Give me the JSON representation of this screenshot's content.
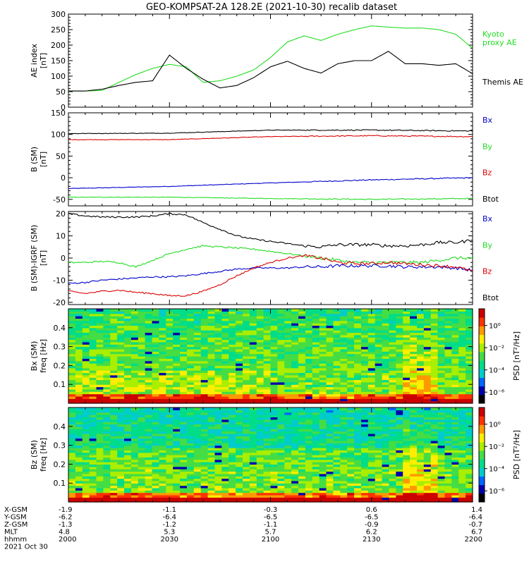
{
  "title": "GEO-KOMPSAT-2A 128.2E (2021-10-30) recalib dataset",
  "time_axis": {
    "ticks": [
      "2000",
      "2030",
      "2100",
      "2130",
      "2200"
    ],
    "date": "2021 Oct 30",
    "rows": [
      {
        "label": "X-GSM",
        "values": [
          "-1.9",
          "-1.1",
          "-0.3",
          "0.6",
          "1.4"
        ]
      },
      {
        "label": "Y-GSM",
        "values": [
          "-6.2",
          "-6.4",
          "-6.5",
          "-6.5",
          "-6.4"
        ]
      },
      {
        "label": "Z-GSM",
        "values": [
          "-1.3",
          "-1.2",
          "-1.1",
          "-0.9",
          "-0.7"
        ]
      },
      {
        "label": "MLT",
        "values": [
          "4.8",
          "5.3",
          "5.7",
          "6.2",
          "6.7"
        ]
      },
      {
        "label": "hhmm",
        "values": [
          "2000",
          "2030",
          "2100",
          "2130",
          "2200"
        ]
      }
    ]
  },
  "colors": {
    "black": "#000000",
    "red": "#dd0000",
    "green": "#22dd22",
    "blue": "#0000cc"
  },
  "spectrogram_colorbar": {
    "label": "PSD [nT²/Hz]",
    "ticks": [
      {
        "exp": 0,
        "text": "10⁰"
      },
      {
        "exp": -2,
        "text": "10⁻²"
      },
      {
        "exp": -4,
        "text": "10⁻⁴"
      },
      {
        "exp": -6,
        "text": "10⁻⁶"
      }
    ],
    "log_range": [
      -7,
      1.5
    ],
    "colormap": [
      "#000000",
      "#0000aa",
      "#0066ff",
      "#00cccc",
      "#00dd88",
      "#44dd44",
      "#aaee00",
      "#ffee00",
      "#ff9900",
      "#ff3300",
      "#cc0000"
    ]
  },
  "chart_data": [
    {
      "type": "line",
      "ylabel": "AE index\n[nT]",
      "ylim": [
        0,
        300
      ],
      "yticks": [
        0,
        50,
        100,
        150,
        200,
        250,
        300
      ],
      "x": [
        0,
        5,
        10,
        15,
        20,
        25,
        30,
        35,
        40,
        45,
        50,
        55,
        60,
        65,
        70,
        75,
        80,
        85,
        90,
        95,
        100,
        105,
        110,
        115,
        120
      ],
      "series": [
        {
          "name": "Kyoto\nproxy AE",
          "color": "green",
          "values": [
            52,
            52,
            54,
            80,
            105,
            125,
            138,
            130,
            80,
            85,
            100,
            120,
            160,
            210,
            230,
            215,
            235,
            250,
            262,
            258,
            255,
            255,
            250,
            235,
            190
          ]
        },
        {
          "name": "Themis AE",
          "color": "black",
          "values": [
            52,
            52,
            58,
            70,
            80,
            85,
            168,
            125,
            90,
            62,
            70,
            95,
            130,
            148,
            125,
            110,
            140,
            150,
            150,
            180,
            140,
            140,
            135,
            140,
            108
          ]
        }
      ]
    },
    {
      "type": "line",
      "ylabel": "B (SM)\n[nT]",
      "ylim": [
        -65,
        150
      ],
      "yticks": [
        -50,
        0,
        50,
        100,
        150
      ],
      "x": [
        0,
        30,
        60,
        90,
        120
      ],
      "series": [
        {
          "name": "Bx",
          "color": "blue",
          "values": [
            -25,
            -20,
            -12,
            -5,
            0
          ]
        },
        {
          "name": "By",
          "color": "green",
          "values": [
            -45,
            -45,
            -48,
            -50,
            -48
          ]
        },
        {
          "name": "Bz",
          "color": "red",
          "values": [
            88,
            88,
            95,
            97,
            95
          ]
        },
        {
          "name": "Btot",
          "color": "black",
          "values": [
            102,
            103,
            110,
            110,
            108
          ]
        }
      ]
    },
    {
      "type": "line",
      "ylabel": "B (SM)-IGRF (SM)\n[nT]",
      "ylim": [
        -21,
        21
      ],
      "yticks": [
        -20,
        -10,
        0,
        10,
        20
      ],
      "x": [
        0,
        5,
        10,
        15,
        20,
        25,
        30,
        35,
        40,
        45,
        50,
        55,
        60,
        65,
        70,
        75,
        80,
        85,
        90,
        95,
        100,
        105,
        110,
        115,
        120
      ],
      "series": [
        {
          "name": "Bx",
          "color": "blue",
          "values": [
            -11.5,
            -11,
            -10,
            -9.5,
            -9,
            -8.5,
            -8.5,
            -8,
            -7,
            -6,
            -5,
            -4.5,
            -4.5,
            -4.5,
            -4,
            -4,
            -3.5,
            -3.5,
            -3.5,
            -3.5,
            -4,
            -4,
            -4,
            -4.5,
            -5.5
          ]
        },
        {
          "name": "By",
          "color": "green",
          "values": [
            -2,
            -2,
            -1.5,
            -2,
            -4,
            -1,
            2,
            4,
            5.5,
            5,
            4.5,
            4,
            3,
            2,
            1,
            0,
            -1,
            -2,
            -2,
            -2,
            -2,
            -2,
            -1,
            0,
            0
          ]
        },
        {
          "name": "Bz",
          "color": "red",
          "values": [
            -15,
            -16,
            -15,
            -14.5,
            -15.5,
            -16,
            -17,
            -17,
            -15,
            -12,
            -8,
            -4.5,
            -2,
            0,
            1,
            0,
            -2,
            -2.5,
            -2.5,
            -2,
            -2.5,
            -3,
            -3.5,
            -4,
            -6
          ]
        },
        {
          "name": "Btot",
          "color": "black",
          "values": [
            20,
            19,
            18.5,
            18.5,
            18.5,
            19,
            20,
            19.5,
            16,
            13,
            10,
            8.5,
            7.5,
            6.5,
            5.5,
            5,
            6,
            6,
            6,
            5.5,
            5.5,
            6,
            7,
            7,
            8
          ]
        }
      ]
    },
    {
      "type": "heatmap",
      "ylabel": "Bx (SM)\nfreq [Hz]",
      "ylim": [
        0,
        0.5
      ],
      "yticks": [
        0.1,
        0.2,
        0.3,
        0.4
      ]
    },
    {
      "type": "heatmap",
      "ylabel": "Bz (SM)\nfreq [Hz]",
      "ylim": [
        0,
        0.5
      ],
      "yticks": [
        0.1,
        0.2,
        0.3,
        0.4
      ]
    }
  ]
}
